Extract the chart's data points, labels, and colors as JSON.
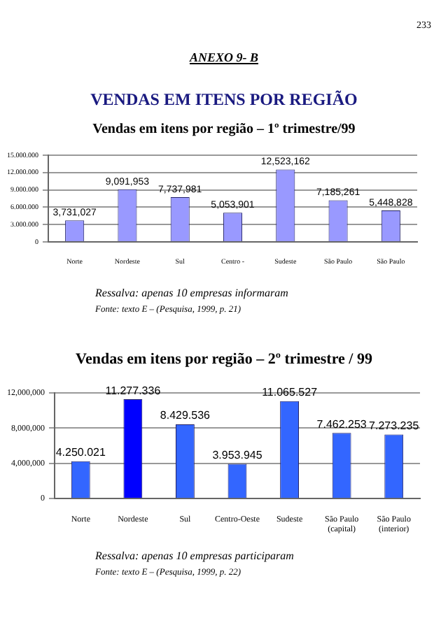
{
  "chart_data": [
    {
      "type": "bar",
      "title": "VENDAS EM ITENS POR REGIÃO",
      "subtitle": "Vendas em itens por região – 1º trimestre/99",
      "annotations": [
        "233",
        "ANEXO 9- B",
        "Ressalva:      apenas 10 empresas informaram",
        "Fonte: texto E – (Pesquisa, 1999, p. 21)"
      ],
      "categories": [
        "Norte",
        "Nordeste",
        "Sul",
        "Centro -",
        "Sudeste",
        "São Paulo",
        "São Paulo"
      ],
      "values": [
        3731027,
        9091953,
        7737981,
        5053901,
        12523162,
        7185261,
        5448828
      ],
      "value_labels": [
        "3,731,027",
        "9,091,953",
        "7,737,981",
        "5,053,901",
        "12,523,162",
        "7,185,261",
        "5,448,828"
      ],
      "color": "#9999ff",
      "ylim": [
        0,
        15000000
      ],
      "yticks": [
        {
          "value": 0,
          "label": "0"
        },
        {
          "value": 3000000,
          "label": "3.000.000"
        },
        {
          "value": 6000000,
          "label": "6.000.000"
        },
        {
          "value": 9000000,
          "label": "9.000.000"
        },
        {
          "value": 12000000,
          "label": "12.000.000"
        },
        {
          "value": 15000000,
          "label": "15.000.000"
        }
      ],
      "grid": "y"
    },
    {
      "type": "bar",
      "title": "Vendas em itens por região – 2º trimestre / 99",
      "annotations": [
        "Ressalva:      apenas 10 empresas participaram",
        "Fonte: texto E – (Pesquisa, 1999, p. 22)"
      ],
      "categories": [
        "Norte",
        "Nordeste",
        "Sul",
        "Centro-Oeste",
        "Sudeste",
        "São Paulo (capital)",
        "São Paulo (interior)"
      ],
      "values": [
        4250021,
        11277336,
        8429536,
        3953945,
        11065527,
        7462253,
        7273235
      ],
      "value_labels": [
        "4.250.021",
        "11.277.336",
        "8.429.536",
        "3.953.945",
        "11.065.527",
        "7.462.253",
        "7.273.235"
      ],
      "colors": [
        "#3366ff",
        "#0000ff",
        "#3366ff",
        "#3366ff",
        "#3366ff",
        "#3366ff",
        "#3366ff"
      ],
      "ylim": [
        0,
        12000000
      ],
      "yticks": [
        {
          "value": 0,
          "label": "0"
        },
        {
          "value": 4000000,
          "label": "4,000,000"
        },
        {
          "value": 8000000,
          "label": "8,000,000"
        },
        {
          "value": 12000000,
          "label": "12,000,000"
        }
      ],
      "grid": "y"
    }
  ]
}
